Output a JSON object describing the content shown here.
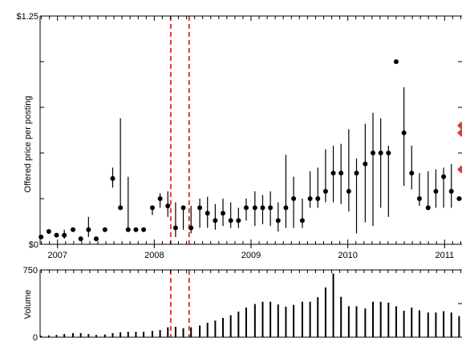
{
  "chart_data": [
    {
      "type": "scatter",
      "subtype": "point-range",
      "ylabel": "Offered price per posting",
      "ylim": [
        0,
        1.25
      ],
      "y_ticks": [
        {
          "value": 0,
          "label": "$0"
        },
        {
          "value": 0.25,
          "label": ""
        },
        {
          "value": 0.5,
          "label": ""
        },
        {
          "value": 0.75,
          "label": ""
        },
        {
          "value": 1.0,
          "label": ""
        },
        {
          "value": 1.25,
          "label": "$1.25"
        }
      ],
      "xlim": [
        2006.82,
        2011.18
      ],
      "x_ticks": [
        {
          "value": 2007.0,
          "label": "2007"
        },
        {
          "value": 2008.0,
          "label": "2008"
        },
        {
          "value": 2009.0,
          "label": "2009"
        },
        {
          "value": 2010.0,
          "label": "2010"
        },
        {
          "value": 2011.0,
          "label": "2011"
        }
      ],
      "vlines": [
        2008.17,
        2008.36
      ],
      "vline_color": "#e03c3c",
      "point_color": "#000000",
      "points": [
        {
          "x": 2006.83,
          "y": 0.04
        },
        {
          "x": 2006.91,
          "y": 0.07
        },
        {
          "x": 2006.99,
          "y": 0.05
        },
        {
          "x": 2007.07,
          "y": 0.05,
          "lo": 0.03,
          "hi": 0.08
        },
        {
          "x": 2007.16,
          "y": 0.08
        },
        {
          "x": 2007.24,
          "y": 0.03
        },
        {
          "x": 2007.32,
          "y": 0.08,
          "lo": 0.04,
          "hi": 0.15
        },
        {
          "x": 2007.4,
          "y": 0.03
        },
        {
          "x": 2007.49,
          "y": 0.08
        },
        {
          "x": 2007.57,
          "y": 0.36,
          "lo": 0.31,
          "hi": 0.42
        },
        {
          "x": 2007.65,
          "y": 0.2,
          "lo": 0.2,
          "hi": 0.69
        },
        {
          "x": 2007.73,
          "y": 0.08,
          "lo": 0.08,
          "hi": 0.37
        },
        {
          "x": 2007.81,
          "y": 0.08
        },
        {
          "x": 2007.89,
          "y": 0.08
        },
        {
          "x": 2007.98,
          "y": 0.2,
          "lo": 0.16,
          "hi": 0.2
        },
        {
          "x": 2008.06,
          "y": 0.25,
          "lo": 0.2,
          "hi": 0.28
        },
        {
          "x": 2008.14,
          "y": 0.21,
          "lo": 0.15,
          "hi": 0.29
        },
        {
          "x": 2008.22,
          "y": 0.09,
          "lo": 0.04,
          "hi": 0.23
        },
        {
          "x": 2008.3,
          "y": 0.2,
          "lo": 0.08,
          "hi": 0.2
        },
        {
          "x": 2008.38,
          "y": 0.09,
          "lo": 0.06,
          "hi": 0.21
        },
        {
          "x": 2008.47,
          "y": 0.2,
          "lo": 0.09,
          "hi": 0.25
        },
        {
          "x": 2008.55,
          "y": 0.17,
          "lo": 0.09,
          "hi": 0.26
        },
        {
          "x": 2008.63,
          "y": 0.13,
          "lo": 0.08,
          "hi": 0.22
        },
        {
          "x": 2008.71,
          "y": 0.17,
          "lo": 0.1,
          "hi": 0.25
        },
        {
          "x": 2008.79,
          "y": 0.13,
          "lo": 0.09,
          "hi": 0.23
        },
        {
          "x": 2008.87,
          "y": 0.13,
          "lo": 0.09,
          "hi": 0.2
        },
        {
          "x": 2008.95,
          "y": 0.2,
          "lo": 0.13,
          "hi": 0.25
        },
        {
          "x": 2009.04,
          "y": 0.2,
          "lo": 0.1,
          "hi": 0.29
        },
        {
          "x": 2009.12,
          "y": 0.2,
          "lo": 0.11,
          "hi": 0.27
        },
        {
          "x": 2009.2,
          "y": 0.2,
          "lo": 0.1,
          "hi": 0.29
        },
        {
          "x": 2009.28,
          "y": 0.13,
          "lo": 0.07,
          "hi": 0.23
        },
        {
          "x": 2009.36,
          "y": 0.2,
          "lo": 0.09,
          "hi": 0.49
        },
        {
          "x": 2009.44,
          "y": 0.25,
          "lo": 0.09,
          "hi": 0.37
        },
        {
          "x": 2009.53,
          "y": 0.13,
          "lo": 0.09,
          "hi": 0.25
        },
        {
          "x": 2009.61,
          "y": 0.25,
          "lo": 0.2,
          "hi": 0.4
        },
        {
          "x": 2009.69,
          "y": 0.25,
          "lo": 0.2,
          "hi": 0.42
        },
        {
          "x": 2009.77,
          "y": 0.29,
          "lo": 0.23,
          "hi": 0.52
        },
        {
          "x": 2009.85,
          "y": 0.39,
          "lo": 0.23,
          "hi": 0.54
        },
        {
          "x": 2009.93,
          "y": 0.39,
          "lo": 0.22,
          "hi": 0.55
        },
        {
          "x": 2010.01,
          "y": 0.29,
          "lo": 0.18,
          "hi": 0.63
        },
        {
          "x": 2010.09,
          "y": 0.39,
          "lo": 0.06,
          "hi": 0.47
        },
        {
          "x": 2010.18,
          "y": 0.44,
          "lo": 0.12,
          "hi": 0.66
        },
        {
          "x": 2010.26,
          "y": 0.5,
          "lo": 0.1,
          "hi": 0.72
        },
        {
          "x": 2010.34,
          "y": 0.5,
          "lo": 0.2,
          "hi": 0.69
        },
        {
          "x": 2010.42,
          "y": 0.5,
          "lo": 0.15,
          "hi": 0.54
        },
        {
          "x": 2010.5,
          "y": 1.0
        },
        {
          "x": 2010.58,
          "y": 0.61,
          "lo": 0.32,
          "hi": 0.86
        },
        {
          "x": 2010.66,
          "y": 0.39,
          "lo": 0.3,
          "hi": 0.54
        },
        {
          "x": 2010.74,
          "y": 0.25,
          "lo": 0.21,
          "hi": 0.39
        },
        {
          "x": 2010.83,
          "y": 0.2,
          "lo": 0.2,
          "hi": 0.4
        },
        {
          "x": 2010.91,
          "y": 0.29,
          "lo": 0.2,
          "hi": 0.41
        },
        {
          "x": 2010.99,
          "y": 0.37,
          "lo": 0.2,
          "hi": 0.42
        },
        {
          "x": 2011.07,
          "y": 0.29,
          "lo": 0.2,
          "hi": 0.44
        },
        {
          "x": 2011.15,
          "y": 0.25
        }
      ],
      "right_markers": [
        0.65,
        0.61,
        0.41
      ],
      "right_marker_color": "#e03c3c"
    },
    {
      "type": "bar",
      "ylabel": "Volume",
      "ylim": [
        0,
        750
      ],
      "y_ticks": [
        {
          "value": 0,
          "label": "0"
        },
        {
          "value": 750,
          "label": "750"
        }
      ],
      "xlim": [
        2006.82,
        2011.18
      ],
      "vlines": [
        2008.17,
        2008.36
      ],
      "vline_color": "#e03c3c",
      "x": [
        2006.83,
        2006.91,
        2006.99,
        2007.07,
        2007.16,
        2007.24,
        2007.32,
        2007.4,
        2007.49,
        2007.57,
        2007.65,
        2007.73,
        2007.81,
        2007.89,
        2007.98,
        2008.06,
        2008.14,
        2008.22,
        2008.3,
        2008.38,
        2008.47,
        2008.55,
        2008.63,
        2008.71,
        2008.79,
        2008.87,
        2008.95,
        2009.04,
        2009.12,
        2009.2,
        2009.28,
        2009.36,
        2009.44,
        2009.53,
        2009.61,
        2009.69,
        2009.77,
        2009.85,
        2009.93,
        2010.01,
        2010.09,
        2010.18,
        2010.26,
        2010.34,
        2010.42,
        2010.5,
        2010.58,
        2010.66,
        2010.74,
        2010.83,
        2010.91,
        2010.99,
        2011.07,
        2011.15
      ],
      "values": [
        15,
        20,
        25,
        35,
        45,
        45,
        35,
        25,
        30,
        45,
        55,
        60,
        60,
        60,
        70,
        80,
        110,
        115,
        100,
        110,
        130,
        160,
        185,
        215,
        245,
        285,
        330,
        370,
        395,
        395,
        365,
        340,
        360,
        395,
        395,
        445,
        555,
        710,
        450,
        345,
        345,
        320,
        395,
        395,
        385,
        345,
        295,
        330,
        300,
        275,
        275,
        290,
        275,
        235
      ]
    }
  ]
}
